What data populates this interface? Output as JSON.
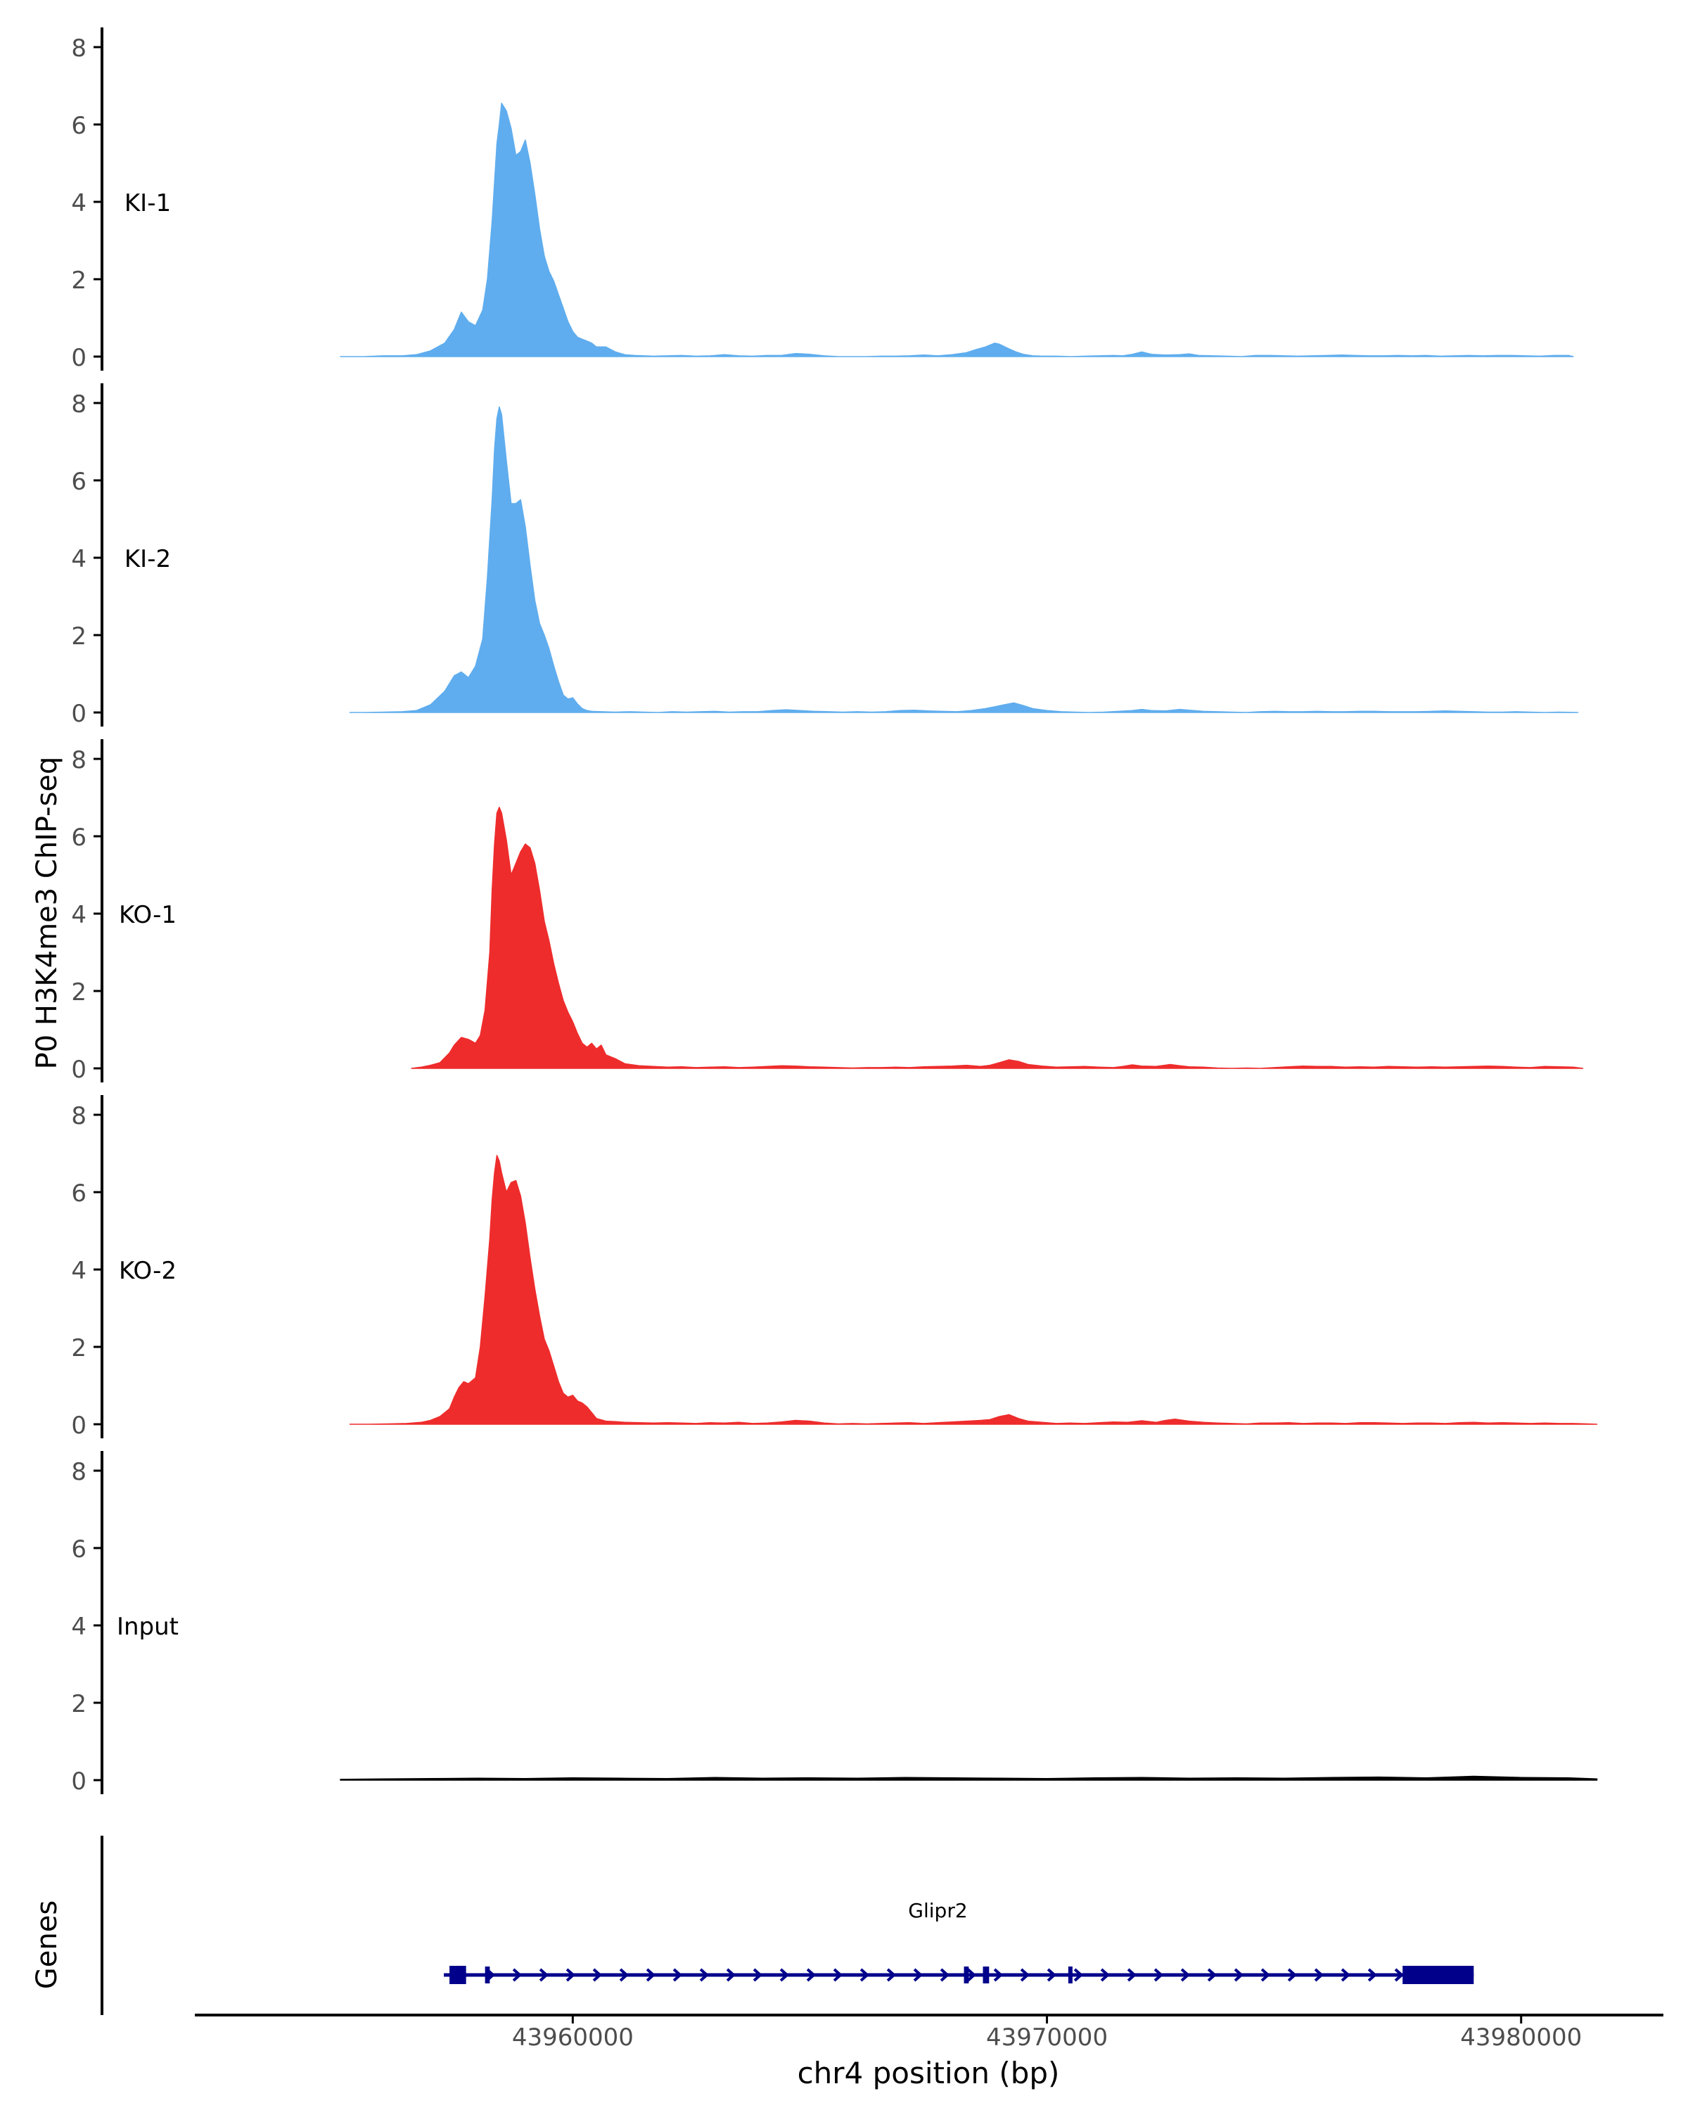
{
  "chart_data": {
    "type": "area",
    "title": "",
    "ylabel": "P0 H3K4me3 ChIP-seq",
    "xlabel": "chr4 position (bp)",
    "genes_label": "Genes",
    "xlim": [
      43952000,
      43983000
    ],
    "ylim": [
      0,
      8.4
    ],
    "yticks": [
      0,
      2,
      4,
      6,
      8
    ],
    "ytick_labels": [
      "0",
      "2",
      "4",
      "6",
      "8"
    ],
    "xticks": [
      43960000,
      43970000,
      43980000
    ],
    "xtick_labels": [
      "43960000",
      "43970000",
      "43980000"
    ],
    "colors": {
      "KI": "#5fadee",
      "KO": "#ee2c2c",
      "Input": "#000000",
      "gene": "#00008b",
      "axis": "#000000",
      "tick_text": "#4d4d4d"
    },
    "tracks": [
      {
        "name": "KI-1",
        "color": "#5fadee",
        "x": [
          43955100,
          43955300,
          43955600,
          43956000,
          43956400,
          43956700,
          43957000,
          43957300,
          43957500,
          43957650,
          43957800,
          43957950,
          43958100,
          43958200,
          43958300,
          43958350,
          43958400,
          43958450,
          43958500,
          43958600,
          43958700,
          43958800,
          43958900,
          43959000,
          43959100,
          43959200,
          43959300,
          43959400,
          43959500,
          43959600,
          43959700,
          43959800,
          43959900,
          43960000,
          43960100,
          43960200,
          43960300,
          43960400,
          43960500,
          43960700,
          43960900,
          43961100,
          43961300,
          43961500,
          43961700,
          43962000,
          43962300,
          43962600,
          43962900,
          43963200,
          43963500,
          43963800,
          43964100,
          43964400,
          43964700,
          43965000,
          43965300,
          43965600,
          43965900,
          43966200,
          43966500,
          43966800,
          43967100,
          43967400,
          43967700,
          43968000,
          43968300,
          43968500,
          43968700,
          43968900,
          43969000,
          43969200,
          43969350,
          43969500,
          43969700,
          43969900,
          43970200,
          43970500,
          43970800,
          43971100,
          43971400,
          43971600,
          43971800,
          43972000,
          43972200,
          43972500,
          43972800,
          43973000,
          43973200,
          43973500,
          43973800,
          43974100,
          43974400,
          43974700,
          43975000,
          43975300,
          43975600,
          43975900,
          43976200,
          43976500,
          43976800,
          43977100,
          43977400,
          43977700,
          43978000,
          43978300,
          43978600,
          43978900,
          43979200,
          43979500,
          43979800,
          43980100,
          43980400,
          43980700,
          43981000,
          43981100
        ],
        "values": [
          0.0,
          0.0,
          0.0,
          0.02,
          0.02,
          0.05,
          0.15,
          0.35,
          0.7,
          1.15,
          0.9,
          0.8,
          1.2,
          2.0,
          3.5,
          4.5,
          5.5,
          6.0,
          6.55,
          6.35,
          5.9,
          5.2,
          5.3,
          5.6,
          5.0,
          4.2,
          3.3,
          2.6,
          2.2,
          1.95,
          1.6,
          1.25,
          0.9,
          0.65,
          0.5,
          0.45,
          0.4,
          0.35,
          0.25,
          0.25,
          0.12,
          0.05,
          0.03,
          0.02,
          0.01,
          0.02,
          0.03,
          0.01,
          0.02,
          0.05,
          0.02,
          0.01,
          0.03,
          0.03,
          0.08,
          0.06,
          0.02,
          0.0,
          0.0,
          0.0,
          0.01,
          0.01,
          0.02,
          0.04,
          0.02,
          0.05,
          0.1,
          0.18,
          0.25,
          0.35,
          0.32,
          0.2,
          0.12,
          0.06,
          0.02,
          0.01,
          0.01,
          0.0,
          0.01,
          0.02,
          0.03,
          0.02,
          0.06,
          0.12,
          0.06,
          0.04,
          0.05,
          0.07,
          0.03,
          0.02,
          0.01,
          0.0,
          0.03,
          0.03,
          0.02,
          0.01,
          0.02,
          0.03,
          0.04,
          0.03,
          0.02,
          0.02,
          0.03,
          0.02,
          0.03,
          0.01,
          0.02,
          0.03,
          0.02,
          0.03,
          0.03,
          0.02,
          0.01,
          0.03,
          0.03,
          0.0
        ]
      },
      {
        "name": "KI-2",
        "color": "#5fadee",
        "x": [
          43955300,
          43955600,
          43956000,
          43956400,
          43956700,
          43957000,
          43957300,
          43957500,
          43957650,
          43957800,
          43957950,
          43958100,
          43958200,
          43958300,
          43958350,
          43958400,
          43958450,
          43958500,
          43958600,
          43958700,
          43958800,
          43958900,
          43959000,
          43959100,
          43959200,
          43959300,
          43959400,
          43959500,
          43959600,
          43959700,
          43959800,
          43959900,
          43960000,
          43960100,
          43960200,
          43960300,
          43960400,
          43960600,
          43960900,
          43961200,
          43961500,
          43961800,
          43962100,
          43962400,
          43962700,
          43963000,
          43963300,
          43963600,
          43963900,
          43964200,
          43964500,
          43964800,
          43965100,
          43965400,
          43965700,
          43966000,
          43966300,
          43966600,
          43966900,
          43967200,
          43967500,
          43967800,
          43968100,
          43968400,
          43968700,
          43968900,
          43969100,
          43969300,
          43969500,
          43969700,
          43970000,
          43970300,
          43970600,
          43970900,
          43971200,
          43971500,
          43971800,
          43972000,
          43972200,
          43972500,
          43972800,
          43973000,
          43973300,
          43973600,
          43973900,
          43974200,
          43974500,
          43974800,
          43975100,
          43975400,
          43975700,
          43976000,
          43976300,
          43976600,
          43976900,
          43977200,
          43977500,
          43977800,
          43978100,
          43978400,
          43978700,
          43979000,
          43979300,
          43979600,
          43979900,
          43980200,
          43980500,
          43980800,
          43981200
        ],
        "values": [
          0.0,
          0.0,
          0.01,
          0.02,
          0.05,
          0.2,
          0.55,
          0.95,
          1.05,
          0.9,
          1.2,
          1.9,
          3.5,
          5.5,
          6.8,
          7.6,
          7.9,
          7.7,
          6.5,
          5.4,
          5.4,
          5.5,
          4.8,
          3.8,
          2.9,
          2.3,
          2.0,
          1.65,
          1.2,
          0.8,
          0.45,
          0.35,
          0.38,
          0.22,
          0.1,
          0.05,
          0.03,
          0.02,
          0.01,
          0.02,
          0.01,
          0.0,
          0.02,
          0.01,
          0.02,
          0.03,
          0.01,
          0.02,
          0.02,
          0.05,
          0.07,
          0.05,
          0.03,
          0.02,
          0.01,
          0.02,
          0.01,
          0.02,
          0.05,
          0.06,
          0.04,
          0.03,
          0.02,
          0.05,
          0.1,
          0.15,
          0.2,
          0.25,
          0.18,
          0.1,
          0.05,
          0.02,
          0.01,
          0.0,
          0.01,
          0.03,
          0.05,
          0.08,
          0.05,
          0.04,
          0.08,
          0.06,
          0.03,
          0.02,
          0.01,
          0.0,
          0.02,
          0.03,
          0.02,
          0.02,
          0.03,
          0.02,
          0.02,
          0.03,
          0.03,
          0.02,
          0.02,
          0.02,
          0.03,
          0.04,
          0.03,
          0.02,
          0.01,
          0.01,
          0.02,
          0.01,
          0.0,
          0.01,
          0.0
        ]
      },
      {
        "name": "KO-1",
        "color": "#ee2c2c",
        "x": [
          43956600,
          43956800,
          43957000,
          43957200,
          43957400,
          43957500,
          43957650,
          43957800,
          43957950,
          43958050,
          43958150,
          43958250,
          43958300,
          43958350,
          43958400,
          43958450,
          43958500,
          43958600,
          43958700,
          43958800,
          43958900,
          43959000,
          43959100,
          43959200,
          43959300,
          43959400,
          43959500,
          43959600,
          43959700,
          43959800,
          43959900,
          43960000,
          43960100,
          43960200,
          43960300,
          43960400,
          43960500,
          43960600,
          43960700,
          43960900,
          43961100,
          43961400,
          43961700,
          43962000,
          43962300,
          43962600,
          43962900,
          43963200,
          43963500,
          43963800,
          43964100,
          43964400,
          43964700,
          43965000,
          43965300,
          43965600,
          43965900,
          43966200,
          43966500,
          43966800,
          43967100,
          43967400,
          43967700,
          43968000,
          43968300,
          43968600,
          43968800,
          43969000,
          43969200,
          43969400,
          43969600,
          43969900,
          43970200,
          43970500,
          43970800,
          43971100,
          43971400,
          43971600,
          43971800,
          43972000,
          43972300,
          43972600,
          43972800,
          43973000,
          43973300,
          43973600,
          43973900,
          43974200,
          43974500,
          43974800,
          43975100,
          43975400,
          43975700,
          43976000,
          43976300,
          43976600,
          43976900,
          43977200,
          43977500,
          43977800,
          43978100,
          43978400,
          43978700,
          43979000,
          43979300,
          43979600,
          43979900,
          43980200,
          43980500,
          43980800,
          43981100,
          43981300
        ],
        "values": [
          0.0,
          0.03,
          0.08,
          0.15,
          0.4,
          0.6,
          0.8,
          0.75,
          0.65,
          0.85,
          1.5,
          3.0,
          4.6,
          5.8,
          6.6,
          6.75,
          6.6,
          5.9,
          5.0,
          5.3,
          5.6,
          5.8,
          5.7,
          5.3,
          4.6,
          3.8,
          3.3,
          2.7,
          2.2,
          1.75,
          1.45,
          1.2,
          0.9,
          0.65,
          0.55,
          0.65,
          0.5,
          0.6,
          0.35,
          0.25,
          0.12,
          0.07,
          0.05,
          0.03,
          0.04,
          0.02,
          0.03,
          0.04,
          0.02,
          0.03,
          0.05,
          0.07,
          0.06,
          0.04,
          0.03,
          0.02,
          0.01,
          0.02,
          0.02,
          0.03,
          0.02,
          0.04,
          0.05,
          0.06,
          0.08,
          0.05,
          0.08,
          0.15,
          0.22,
          0.18,
          0.1,
          0.06,
          0.03,
          0.04,
          0.05,
          0.03,
          0.02,
          0.05,
          0.09,
          0.06,
          0.05,
          0.1,
          0.07,
          0.04,
          0.03,
          0.01,
          0.0,
          0.01,
          0.0,
          0.02,
          0.04,
          0.06,
          0.05,
          0.05,
          0.03,
          0.04,
          0.03,
          0.05,
          0.04,
          0.03,
          0.04,
          0.03,
          0.04,
          0.05,
          0.06,
          0.05,
          0.03,
          0.02,
          0.05,
          0.04,
          0.03,
          0.0
        ]
      },
      {
        "name": "KO-2",
        "color": "#ee2c2c",
        "x": [
          43955300,
          43955700,
          43956100,
          43956500,
          43956800,
          43957000,
          43957200,
          43957400,
          43957500,
          43957600,
          43957700,
          43957800,
          43957950,
          43958050,
          43958150,
          43958250,
          43958300,
          43958350,
          43958400,
          43958450,
          43958500,
          43958600,
          43958700,
          43958800,
          43958900,
          43959000,
          43959100,
          43959200,
          43959300,
          43959400,
          43959500,
          43959600,
          43959700,
          43959800,
          43959900,
          43960000,
          43960100,
          43960200,
          43960300,
          43960400,
          43960500,
          43960700,
          43960900,
          43961100,
          43961400,
          43961700,
          43962000,
          43962300,
          43962600,
          43962900,
          43963200,
          43963500,
          43963800,
          43964100,
          43964400,
          43964700,
          43965000,
          43965300,
          43965600,
          43965900,
          43966200,
          43966500,
          43966800,
          43967100,
          43967400,
          43967700,
          43968000,
          43968300,
          43968600,
          43968800,
          43969000,
          43969200,
          43969400,
          43969600,
          43969900,
          43970200,
          43970500,
          43970800,
          43971100,
          43971400,
          43971700,
          43972000,
          43972300,
          43972500,
          43972700,
          43973000,
          43973300,
          43973600,
          43973900,
          43974200,
          43974500,
          43974800,
          43975100,
          43975400,
          43975700,
          43976000,
          43976300,
          43976600,
          43976900,
          43977200,
          43977500,
          43977800,
          43978100,
          43978400,
          43978700,
          43979000,
          43979300,
          43979600,
          43979900,
          43980200,
          43980500,
          43980800,
          43981100,
          43981400,
          43981600
        ],
        "values": [
          0.0,
          0.0,
          0.01,
          0.02,
          0.05,
          0.1,
          0.2,
          0.4,
          0.7,
          0.95,
          1.1,
          1.05,
          1.2,
          2.0,
          3.3,
          4.8,
          5.8,
          6.5,
          6.95,
          6.8,
          6.5,
          6.0,
          6.25,
          6.3,
          5.9,
          5.2,
          4.3,
          3.5,
          2.8,
          2.2,
          1.9,
          1.5,
          1.1,
          0.8,
          0.7,
          0.75,
          0.6,
          0.55,
          0.45,
          0.3,
          0.15,
          0.08,
          0.07,
          0.05,
          0.04,
          0.03,
          0.04,
          0.03,
          0.02,
          0.04,
          0.03,
          0.05,
          0.02,
          0.03,
          0.06,
          0.1,
          0.08,
          0.03,
          0.01,
          0.02,
          0.01,
          0.02,
          0.03,
          0.04,
          0.02,
          0.04,
          0.06,
          0.08,
          0.1,
          0.12,
          0.2,
          0.25,
          0.15,
          0.08,
          0.05,
          0.02,
          0.03,
          0.02,
          0.04,
          0.06,
          0.05,
          0.09,
          0.05,
          0.1,
          0.13,
          0.08,
          0.05,
          0.03,
          0.02,
          0.01,
          0.03,
          0.03,
          0.04,
          0.02,
          0.03,
          0.03,
          0.02,
          0.04,
          0.04,
          0.03,
          0.02,
          0.03,
          0.03,
          0.02,
          0.04,
          0.05,
          0.03,
          0.04,
          0.03,
          0.02,
          0.03,
          0.02,
          0.02,
          0.01,
          0.0
        ]
      },
      {
        "name": "Input",
        "color": "#000000",
        "x": [
          43955100,
          43956000,
          43957000,
          43958000,
          43959000,
          43960000,
          43961000,
          43962000,
          43963000,
          43964000,
          43965000,
          43966000,
          43967000,
          43968000,
          43969000,
          43970000,
          43971000,
          43972000,
          43973000,
          43974000,
          43975000,
          43976000,
          43977000,
          43978000,
          43979000,
          43980000,
          43981000,
          43981600
        ],
        "values": [
          0.02,
          0.03,
          0.04,
          0.05,
          0.04,
          0.06,
          0.05,
          0.04,
          0.07,
          0.05,
          0.06,
          0.05,
          0.07,
          0.06,
          0.05,
          0.04,
          0.06,
          0.07,
          0.05,
          0.06,
          0.05,
          0.07,
          0.08,
          0.06,
          0.1,
          0.07,
          0.06,
          0.03
        ]
      }
    ],
    "genes": [
      {
        "name": "Glipr2",
        "strand": "+",
        "start": 43957400,
        "end": 43979000,
        "exons": [
          [
            43957400,
            43957750
          ],
          [
            43958150,
            43958250
          ],
          [
            43968250,
            43968350
          ],
          [
            43968650,
            43968780
          ],
          [
            43970450,
            43970520
          ],
          [
            43977500,
            43979000
          ]
        ]
      }
    ]
  }
}
